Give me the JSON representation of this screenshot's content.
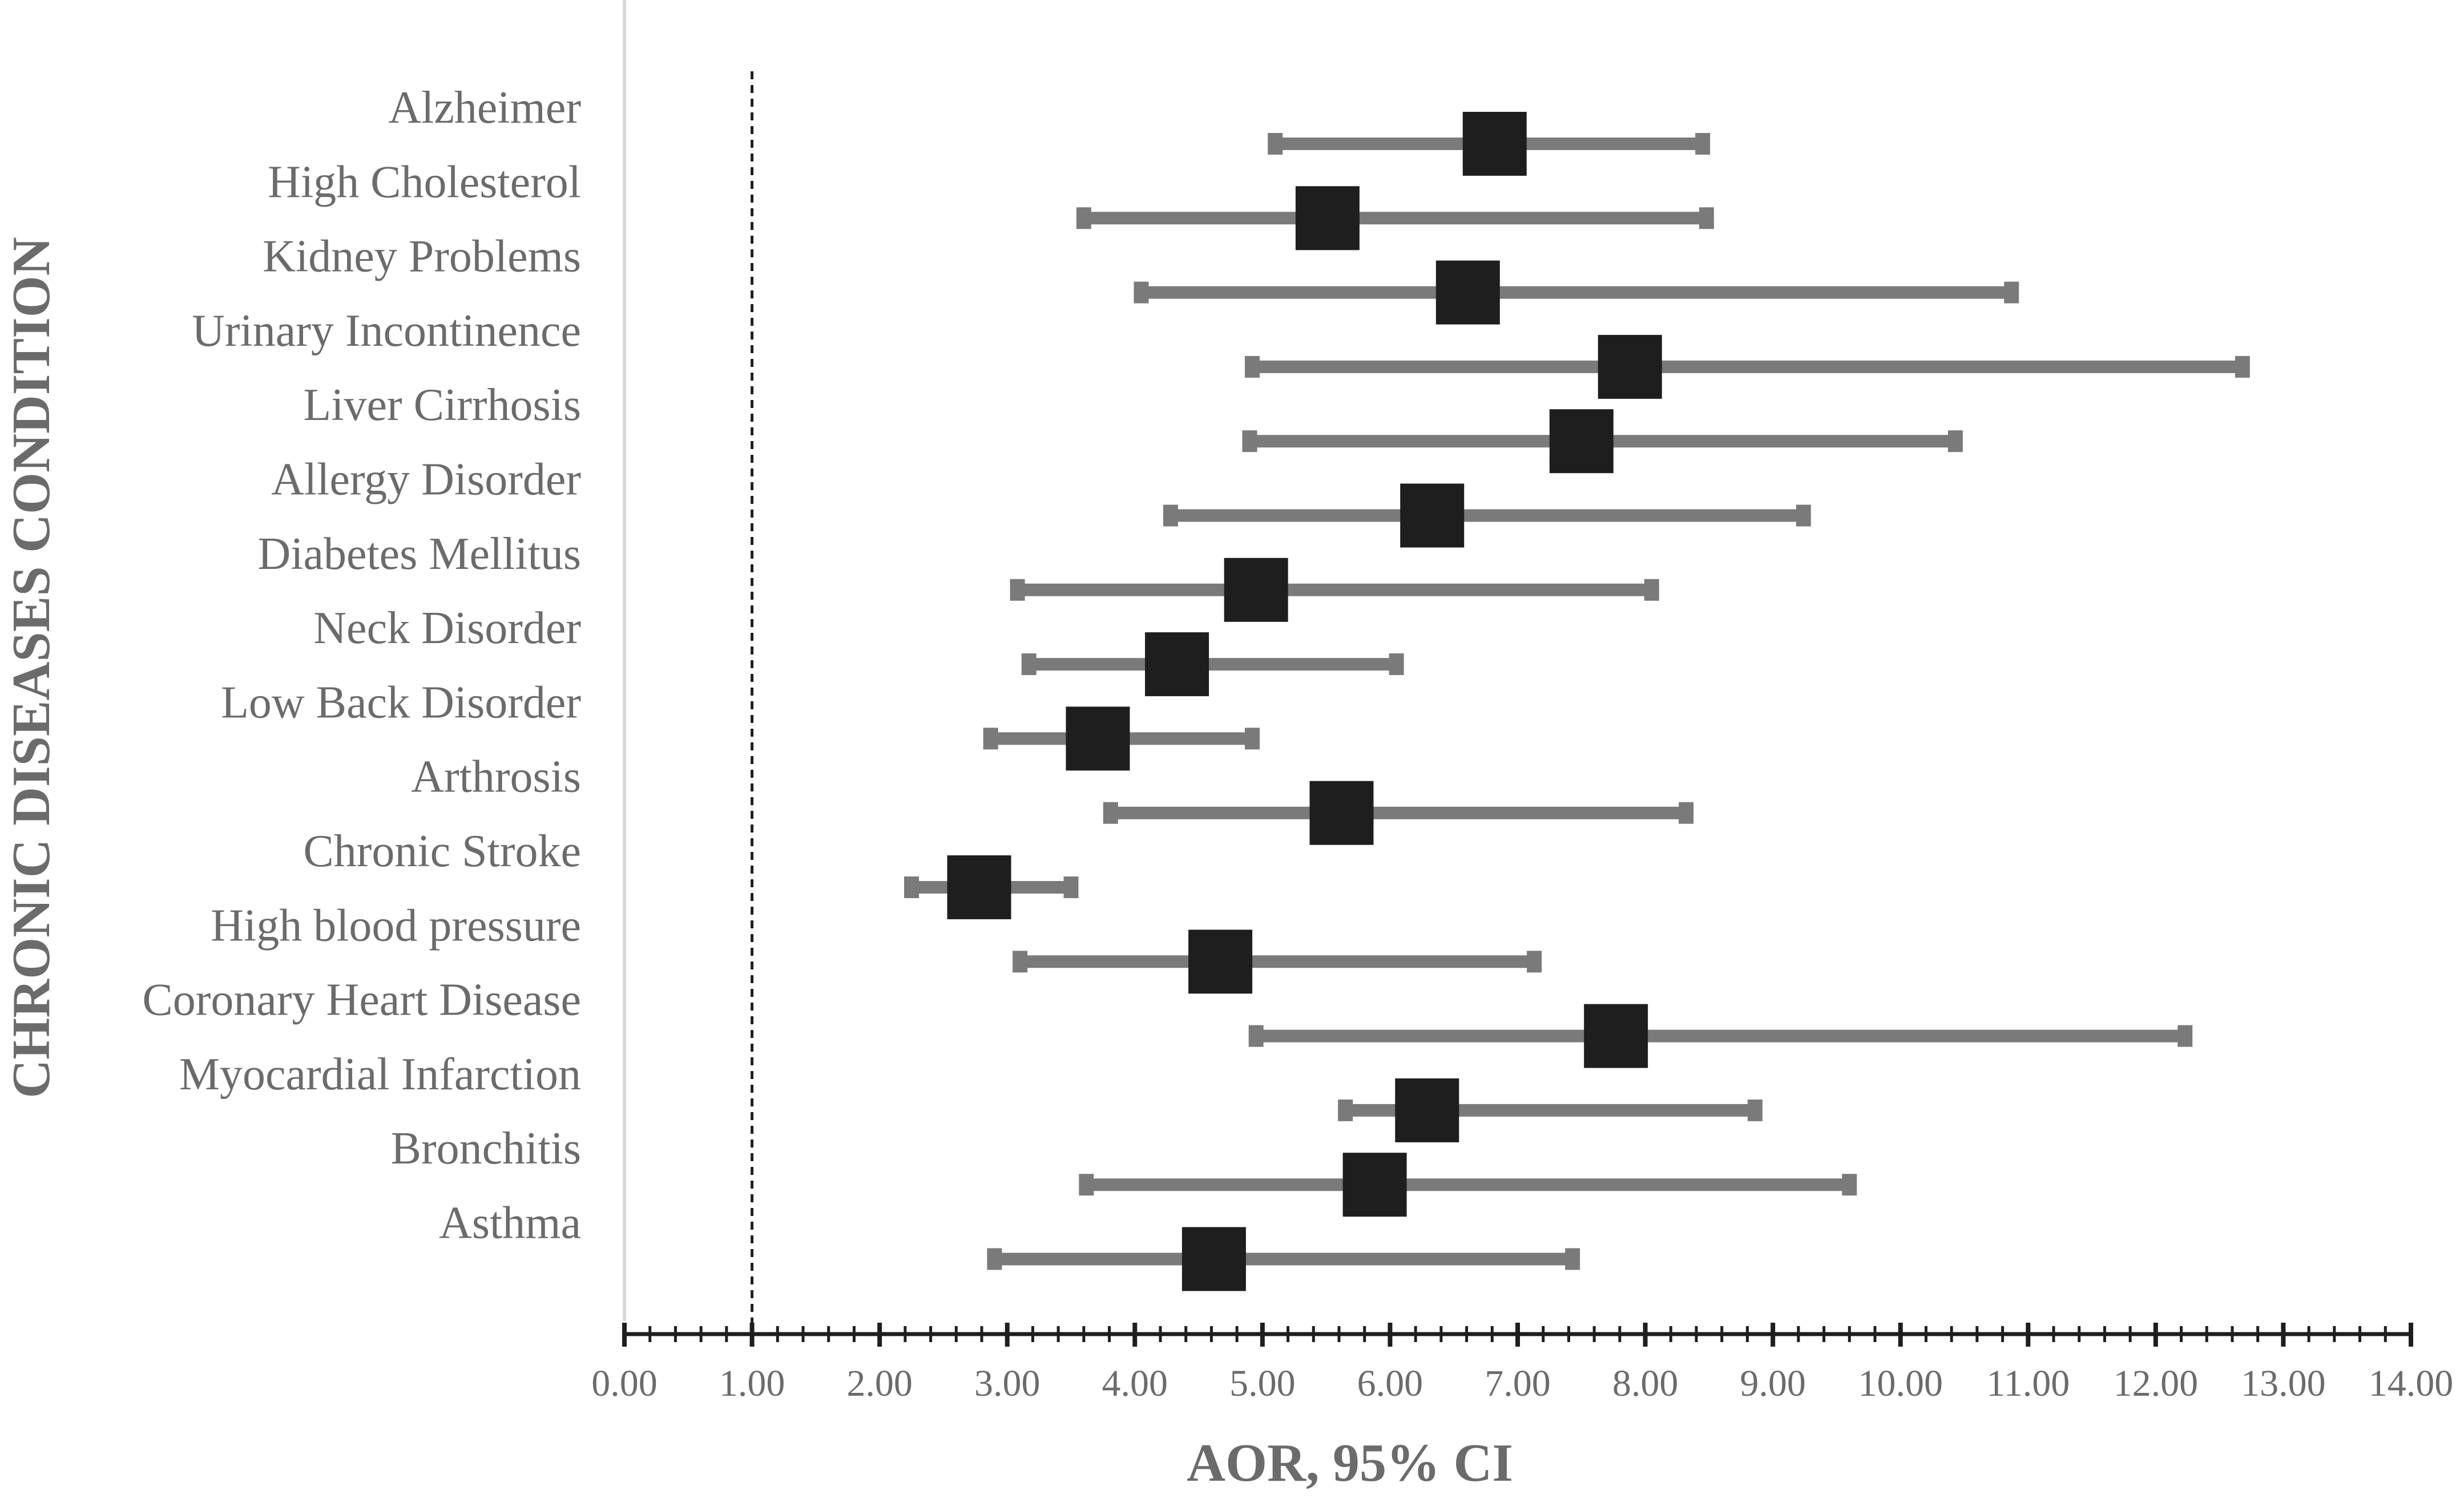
{
  "chart_data": {
    "type": "forest",
    "title": "",
    "xlabel": "AOR, 95% CI",
    "ylabel": "CHRONIC DISEASES CONDITION",
    "xlim": [
      0,
      14
    ],
    "reference_line": 1.0,
    "x_ticks": [
      "0.00",
      "1.00",
      "2.00",
      "3.00",
      "4.00",
      "5.00",
      "6.00",
      "7.00",
      "8.00",
      "9.00",
      "10.00",
      "11.00",
      "12.00",
      "13.00",
      "14.00"
    ],
    "categories": [
      "Alzheimer",
      "High Cholesterol",
      "Kidney Problems",
      "Urinary Incontinence",
      "Liver Cirrhosis",
      "Allergy Disorder",
      "Diabetes Mellitus",
      "Neck Disorder",
      "Low Back Disorder",
      "Arthrosis",
      "Chronic Stroke",
      "High blood pressure",
      "Coronary Heart Disease",
      "Myocardial Infarction",
      "Bronchitis",
      "Asthma"
    ],
    "estimates": [
      6.82,
      5.51,
      6.61,
      7.88,
      7.5,
      6.33,
      4.95,
      4.33,
      3.71,
      5.62,
      2.78,
      4.67,
      7.77,
      6.29,
      5.88,
      4.62
    ],
    "lower": [
      5.1,
      3.6,
      4.05,
      4.92,
      4.9,
      4.28,
      3.08,
      3.17,
      2.87,
      3.81,
      2.25,
      3.1,
      4.95,
      5.65,
      3.62,
      2.9
    ],
    "upper": [
      8.45,
      8.48,
      10.87,
      12.68,
      10.43,
      9.24,
      8.05,
      6.05,
      4.92,
      8.32,
      3.5,
      7.13,
      12.23,
      8.86,
      9.6,
      7.43
    ],
    "colors": {
      "ci_line": "#7a7a7a",
      "marker": "#1f1e1e",
      "text": "#6b6b6b",
      "axis": "#1f1e1e",
      "y_axis_line": "#d9d9d9"
    }
  }
}
